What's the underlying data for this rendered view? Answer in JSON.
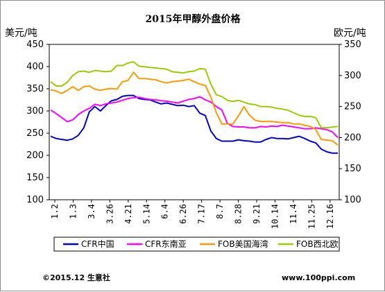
{
  "chart_data": {
    "type": "line",
    "title": "2015年甲醇外盘价格",
    "left_unit": "美元/吨",
    "right_unit": "欧元/吨",
    "y_left": {
      "min": 100,
      "max": 450,
      "step": 50,
      "ticks": [
        "100",
        "150",
        "200",
        "250",
        "300",
        "350",
        "400",
        "450"
      ]
    },
    "y_right": {
      "min": 100,
      "max": 350,
      "step": 50,
      "ticks": [
        "100",
        "150",
        "200",
        "250",
        "300",
        "350"
      ]
    },
    "x_ticks": [
      "1.2",
      "1.3",
      "3.4",
      "3.26",
      "4.21",
      "5.14",
      "6.4",
      "6.26",
      "7.17",
      "8.7",
      "8.28",
      "9.21",
      "10.14",
      "11.4",
      "11.25",
      "12.16"
    ],
    "grid": false,
    "legend_position": "bottom",
    "series": [
      {
        "name": "CFR中国",
        "color": "#0000cc",
        "axis": "left",
        "values": [
          243,
          238,
          236,
          234,
          237,
          245,
          262,
          298,
          310,
          300,
          312,
          323,
          326,
          333,
          335,
          335,
          328,
          326,
          325,
          320,
          316,
          318,
          315,
          312,
          313,
          310,
          312,
          295,
          290,
          255,
          238,
          232,
          232,
          232,
          235,
          233,
          232,
          230,
          230,
          236,
          240,
          238,
          238,
          237,
          240,
          243,
          238,
          232,
          228,
          214,
          208,
          205,
          205
        ]
      },
      {
        "name": "CFR东南亚",
        "color": "#ff00ff",
        "axis": "left",
        "values": [
          302,
          294,
          285,
          276,
          280,
          292,
          300,
          306,
          315,
          312,
          316,
          318,
          320,
          324,
          328,
          330,
          331,
          328,
          326,
          325,
          323,
          322,
          320,
          318,
          322,
          326,
          328,
          332,
          325,
          320,
          310,
          302,
          272,
          265,
          264,
          264,
          262,
          262,
          265,
          264,
          266,
          265,
          268,
          266,
          264,
          262,
          260,
          260,
          262,
          260,
          258,
          253,
          240
        ]
      },
      {
        "name": "FOB美国海湾",
        "color": "#ff9900",
        "axis": "right",
        "values": [
          277,
          275,
          271,
          276,
          282,
          276,
          282,
          283,
          278,
          276,
          278,
          279,
          278,
          290,
          292,
          305,
          295,
          295,
          294,
          293,
          290,
          288,
          290,
          291,
          292,
          294,
          290,
          286,
          284,
          265,
          240,
          222,
          222,
          222,
          235,
          250,
          236,
          228,
          226,
          226,
          226,
          225,
          224,
          224,
          222,
          222,
          220,
          218,
          213,
          197,
          196,
          195,
          188
        ]
      },
      {
        "name": "FOB西北欧",
        "color": "#99cc00",
        "axis": "right",
        "values": [
          290,
          283,
          283,
          289,
          300,
          306,
          307,
          305,
          308,
          307,
          306,
          307,
          316,
          316,
          320,
          322,
          315,
          314,
          313,
          312,
          311,
          310,
          306,
          305,
          304,
          306,
          307,
          311,
          310,
          286,
          269,
          266,
          260,
          258,
          260,
          257,
          254,
          253,
          250,
          250,
          249,
          247,
          246,
          244,
          240,
          236,
          234,
          234,
          232,
          216,
          216,
          217,
          218
        ]
      }
    ]
  },
  "footer": {
    "copyright": "©2015.12 生意社",
    "url": "www.100ppi.com"
  }
}
